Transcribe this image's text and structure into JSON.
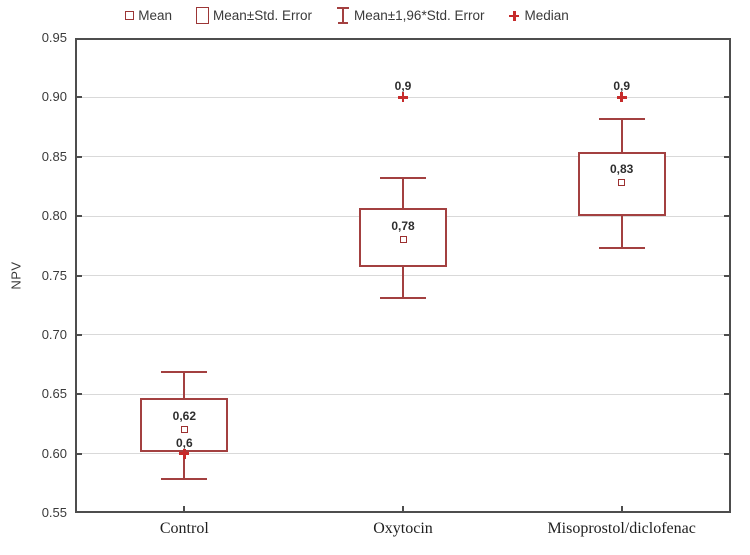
{
  "chart_data": {
    "type": "box",
    "title": "",
    "ylabel": "NPV",
    "xlabel": "",
    "ylim": [
      0.55,
      0.95
    ],
    "grid": true,
    "legend_position": "top",
    "y_ticks": [
      {
        "value": 0.95,
        "label": "0.95"
      },
      {
        "value": 0.9,
        "label": "0.90"
      },
      {
        "value": 0.85,
        "label": "0.85"
      },
      {
        "value": 0.8,
        "label": "0.80"
      },
      {
        "value": 0.75,
        "label": "0.75"
      },
      {
        "value": 0.7,
        "label": "0.70"
      },
      {
        "value": 0.65,
        "label": "0.65"
      },
      {
        "value": 0.6,
        "label": "0.60"
      },
      {
        "value": 0.55,
        "label": "0.55"
      }
    ],
    "categories": [
      "Control",
      "Oxytocin",
      "Misoprostol/diclofenac"
    ],
    "series": [
      {
        "category": "Control",
        "mean": 0.62,
        "mean_label": "0,62",
        "se_low": 0.601,
        "se_high": 0.647,
        "ci_low": 0.579,
        "ci_high": 0.669,
        "median": 0.6,
        "median_label": "0,6"
      },
      {
        "category": "Oxytocin",
        "mean": 0.78,
        "mean_label": "0,78",
        "se_low": 0.757,
        "se_high": 0.807,
        "ci_low": 0.731,
        "ci_high": 0.832,
        "median": 0.9,
        "median_label": "0,9"
      },
      {
        "category": "Misoprostol/diclofenac",
        "mean": 0.828,
        "mean_label": "0,83",
        "se_low": 0.8,
        "se_high": 0.854,
        "ci_low": 0.773,
        "ci_high": 0.882,
        "median": 0.9,
        "median_label": "0,9"
      }
    ],
    "legend": [
      {
        "marker": "mean-square",
        "label": "Mean"
      },
      {
        "marker": "se-box",
        "label": "Mean±Std. Error"
      },
      {
        "marker": "ci-whisker",
        "label": "Mean±1,96*Std. Error"
      },
      {
        "marker": "median-plus",
        "label": "Median"
      }
    ],
    "colors": {
      "box": "#a34040",
      "median": "#c62b2b",
      "grid": "#d9d9d9",
      "axis": "#4d4d4d",
      "text": "#3a3a3a"
    }
  }
}
